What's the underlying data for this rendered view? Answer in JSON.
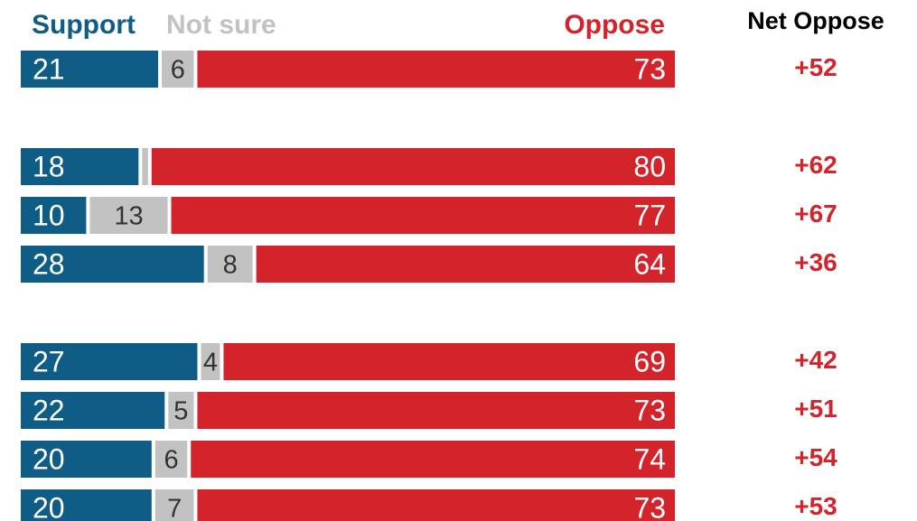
{
  "header": {
    "support": "Support",
    "not_sure": "Not sure",
    "oppose": "Oppose",
    "net_oppose": "Net Oppose"
  },
  "colors": {
    "support": "#0f5d86",
    "not_sure": "#c2c2c2",
    "oppose": "#d3232b",
    "net_text": "#d3232b"
  },
  "chart_data": {
    "type": "bar",
    "stacked": true,
    "orientation": "horizontal",
    "xlim": [
      0,
      100
    ],
    "series": [
      {
        "name": "Support",
        "values": [
          21,
          18,
          10,
          28,
          27,
          22,
          20,
          20
        ]
      },
      {
        "name": "Not sure",
        "values": [
          6,
          2,
          13,
          8,
          4,
          5,
          6,
          7
        ]
      },
      {
        "name": "Oppose",
        "values": [
          73,
          80,
          77,
          64,
          69,
          73,
          74,
          73
        ]
      }
    ],
    "value_labels": {
      "support": [
        "21",
        "18",
        "10",
        "28",
        "27",
        "22",
        "20",
        "20"
      ],
      "not_sure": [
        "6",
        "",
        "13",
        "8",
        "4",
        "5",
        "6",
        "7"
      ],
      "oppose": [
        "73",
        "80",
        "77",
        "64",
        "69",
        "73",
        "74",
        "73"
      ]
    },
    "net_oppose": [
      "+52",
      "+62",
      "+67",
      "+36",
      "+42",
      "+51",
      "+54",
      "+53"
    ],
    "groups": [
      [
        0
      ],
      [
        1,
        2,
        3
      ],
      [
        4,
        5,
        6,
        7
      ]
    ]
  }
}
